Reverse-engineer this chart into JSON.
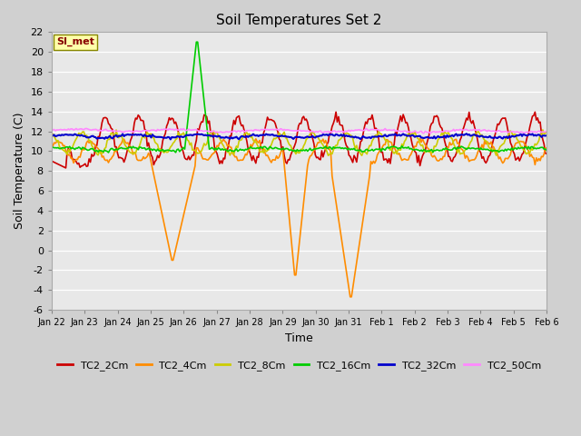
{
  "title": "Soil Temperatures Set 2",
  "xlabel": "Time",
  "ylabel": "Soil Temperature (C)",
  "ylim": [
    -6,
    22
  ],
  "yticks": [
    -6,
    -4,
    -2,
    0,
    2,
    4,
    6,
    8,
    10,
    12,
    14,
    16,
    18,
    20,
    22
  ],
  "x_labels": [
    "Jan 22",
    "Jan 23",
    "Jan 24",
    "Jan 25",
    "Jan 26",
    "Jan 27",
    "Jan 28",
    "Jan 29",
    "Jan 30",
    "Jan 31",
    "Feb 1",
    "Feb 2",
    "Feb 3",
    "Feb 4",
    "Feb 5",
    "Feb 6"
  ],
  "fig_bg": "#d0d0d0",
  "plot_bg": "#e8e8e8",
  "grid_color": "#ffffff",
  "series_order": [
    "TC2_2Cm",
    "TC2_4Cm",
    "TC2_8Cm",
    "TC2_16Cm",
    "TC2_32Cm",
    "TC2_50Cm"
  ],
  "series": {
    "TC2_2Cm": {
      "color": "#cc0000",
      "lw": 1.2
    },
    "TC2_4Cm": {
      "color": "#ff8c00",
      "lw": 1.2
    },
    "TC2_8Cm": {
      "color": "#cccc00",
      "lw": 1.2
    },
    "TC2_16Cm": {
      "color": "#00cc00",
      "lw": 1.2
    },
    "TC2_32Cm": {
      "color": "#0000cc",
      "lw": 1.5
    },
    "TC2_50Cm": {
      "color": "#ff88ff",
      "lw": 1.2
    }
  },
  "annotation_text": "SI_met",
  "figsize": [
    6.4,
    4.8
  ],
  "dpi": 100
}
